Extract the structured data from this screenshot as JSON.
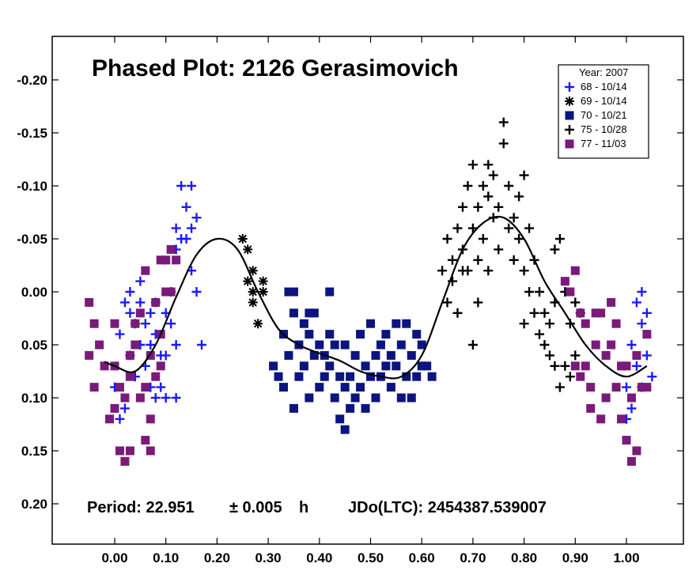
{
  "chart_data": {
    "type": "scatter",
    "title": "Phased Plot: 2126 Gerasimovich",
    "xlabel": "",
    "ylabel": "",
    "xlim": [
      -0.12,
      1.1
    ],
    "ylim": [
      0.24,
      -0.24
    ],
    "y_inverted": true,
    "grid": false,
    "x_ticks": [
      "0.00",
      "0.10",
      "0.20",
      "0.30",
      "0.40",
      "0.50",
      "0.60",
      "0.70",
      "0.80",
      "0.90",
      "1.00"
    ],
    "y_ticks": [
      "-0.20",
      "-0.15",
      "-0.10",
      "-0.05",
      "0.00",
      "0.05",
      "0.10",
      "0.15",
      "0.20"
    ],
    "legend": {
      "position": "top-right",
      "title": "Year: 2007",
      "entries": [
        {
          "label": "68 - 10/14",
          "marker": "plus",
          "color": "#1a1aff"
        },
        {
          "label": "69 - 10/14",
          "marker": "asterisk",
          "color": "#000000"
        },
        {
          "label": "70 - 10/21",
          "marker": "square",
          "color": "#0c1480"
        },
        {
          "label": "75 - 10/28",
          "marker": "plus",
          "color": "#000000"
        },
        {
          "label": "77 - 11/03",
          "marker": "square",
          "color": "#7a1a7a"
        }
      ]
    },
    "footer": {
      "period": "Period: 22.951",
      "uncertainty": "± 0.005",
      "unit": "h",
      "epoch": "JDo(LTC): 2454387.539007"
    },
    "fit_curve": {
      "name": "Fourier fit",
      "x": [
        -0.02,
        0.0,
        0.04,
        0.08,
        0.12,
        0.16,
        0.2,
        0.24,
        0.28,
        0.32,
        0.36,
        0.4,
        0.44,
        0.48,
        0.52,
        0.56,
        0.6,
        0.64,
        0.68,
        0.72,
        0.76,
        0.8,
        0.84,
        0.88,
        0.92,
        0.96,
        1.0,
        1.04
      ],
      "y": [
        0.066,
        0.07,
        0.075,
        0.05,
        0.005,
        -0.035,
        -0.05,
        -0.04,
        0.0,
        0.035,
        0.05,
        0.058,
        0.065,
        0.075,
        0.08,
        0.08,
        0.06,
        0.01,
        -0.04,
        -0.065,
        -0.07,
        -0.05,
        -0.01,
        0.02,
        0.05,
        0.07,
        0.08,
        0.07
      ]
    },
    "series": [
      {
        "name": "68 - 10/14",
        "marker": "plus",
        "color": "#1a1aff",
        "points": [
          [
            0.0,
            0.09
          ],
          [
            0.01,
            0.12
          ],
          [
            0.02,
            0.11
          ],
          [
            0.01,
            0.04
          ],
          [
            0.02,
            0.01
          ],
          [
            0.03,
            0.02
          ],
          [
            0.03,
            0.06
          ],
          [
            0.04,
            0.03
          ],
          [
            0.04,
            0.08
          ],
          [
            0.05,
            0.05
          ],
          [
            0.05,
            0.01
          ],
          [
            0.06,
            0.03
          ],
          [
            0.06,
            0.07
          ],
          [
            0.07,
            0.02
          ],
          [
            0.07,
            0.05
          ],
          [
            0.08,
            0.01
          ],
          [
            0.08,
            0.04
          ],
          [
            0.09,
            0.06
          ],
          [
            0.09,
            0.09
          ],
          [
            0.1,
            0.02
          ],
          [
            0.1,
            0.1
          ],
          [
            0.1,
            0.06
          ],
          [
            0.11,
            0.03
          ],
          [
            0.11,
            0.0
          ],
          [
            0.12,
            -0.04
          ],
          [
            0.12,
            -0.06
          ],
          [
            0.12,
            0.05
          ],
          [
            0.13,
            -0.05
          ],
          [
            0.13,
            -0.1
          ],
          [
            0.14,
            -0.08
          ],
          [
            0.14,
            -0.05
          ],
          [
            0.15,
            -0.06
          ],
          [
            0.15,
            -0.1
          ],
          [
            0.15,
            -0.02
          ],
          [
            0.16,
            0.0
          ],
          [
            0.17,
            0.05
          ],
          [
            0.16,
            -0.07
          ],
          [
            0.03,
            0.0
          ],
          [
            0.05,
            -0.01
          ],
          [
            0.07,
            0.09
          ],
          [
            0.08,
            0.1
          ],
          [
            0.12,
            0.1
          ],
          [
            1.0,
            0.09
          ],
          [
            1.0,
            0.12
          ],
          [
            1.01,
            0.05
          ],
          [
            1.01,
            0.11
          ],
          [
            1.02,
            0.01
          ],
          [
            1.02,
            0.07
          ],
          [
            1.03,
            0.0
          ],
          [
            1.03,
            0.03
          ],
          [
            1.04,
            0.02
          ],
          [
            1.04,
            0.06
          ],
          [
            1.05,
            0.08
          ],
          [
            1.03,
            0.09
          ]
        ]
      },
      {
        "name": "69 - 10/14",
        "marker": "asterisk",
        "color": "#000000",
        "points": [
          [
            0.25,
            -0.05
          ],
          [
            0.26,
            -0.04
          ],
          [
            0.26,
            -0.01
          ],
          [
            0.27,
            0.0
          ],
          [
            0.27,
            0.01
          ],
          [
            0.28,
            0.03
          ],
          [
            0.29,
            0.0
          ],
          [
            0.29,
            -0.01
          ],
          [
            0.27,
            -0.02
          ]
        ]
      },
      {
        "name": "70 - 10/21",
        "marker": "square",
        "color": "#0c1480",
        "points": [
          [
            0.31,
            0.07
          ],
          [
            0.32,
            0.08
          ],
          [
            0.33,
            0.09
          ],
          [
            0.33,
            0.04
          ],
          [
            0.34,
            0.0
          ],
          [
            0.34,
            0.06
          ],
          [
            0.35,
            0.11
          ],
          [
            0.35,
            0.02
          ],
          [
            0.36,
            0.05
          ],
          [
            0.36,
            0.08
          ],
          [
            0.37,
            0.03
          ],
          [
            0.37,
            0.07
          ],
          [
            0.38,
            0.1
          ],
          [
            0.38,
            0.04
          ],
          [
            0.39,
            0.06
          ],
          [
            0.39,
            0.02
          ],
          [
            0.4,
            0.05
          ],
          [
            0.4,
            0.09
          ],
          [
            0.41,
            0.06
          ],
          [
            0.41,
            0.08
          ],
          [
            0.42,
            0.04
          ],
          [
            0.42,
            0.07
          ],
          [
            0.43,
            0.1
          ],
          [
            0.43,
            0.05
          ],
          [
            0.44,
            0.08
          ],
          [
            0.44,
            0.12
          ],
          [
            0.45,
            0.09
          ],
          [
            0.45,
            0.13
          ],
          [
            0.46,
            0.11
          ],
          [
            0.46,
            0.08
          ],
          [
            0.47,
            0.1
          ],
          [
            0.47,
            0.06
          ],
          [
            0.48,
            0.09
          ],
          [
            0.48,
            0.04
          ],
          [
            0.49,
            0.07
          ],
          [
            0.49,
            0.11
          ],
          [
            0.5,
            0.03
          ],
          [
            0.5,
            0.08
          ],
          [
            0.51,
            0.06
          ],
          [
            0.51,
            0.1
          ],
          [
            0.52,
            0.05
          ],
          [
            0.52,
            0.08
          ],
          [
            0.53,
            0.07
          ],
          [
            0.53,
            0.04
          ],
          [
            0.54,
            0.06
          ],
          [
            0.54,
            0.09
          ],
          [
            0.55,
            0.03
          ],
          [
            0.55,
            0.07
          ],
          [
            0.56,
            0.05
          ],
          [
            0.56,
            0.1
          ],
          [
            0.57,
            0.08
          ],
          [
            0.57,
            0.03
          ],
          [
            0.58,
            0.06
          ],
          [
            0.58,
            0.1
          ],
          [
            0.59,
            0.04
          ],
          [
            0.59,
            0.08
          ],
          [
            0.6,
            0.05
          ],
          [
            0.6,
            0.07
          ],
          [
            0.61,
            0.07
          ],
          [
            0.62,
            0.08
          ],
          [
            0.35,
            0.0
          ],
          [
            0.38,
            0.02
          ],
          [
            0.42,
            0.0
          ],
          [
            0.45,
            0.05
          ]
        ]
      },
      {
        "name": "75 - 10/28",
        "marker": "plus",
        "color": "#000000",
        "points": [
          [
            0.64,
            -0.02
          ],
          [
            0.65,
            -0.05
          ],
          [
            0.65,
            0.01
          ],
          [
            0.66,
            -0.03
          ],
          [
            0.66,
            -0.01
          ],
          [
            0.67,
            -0.06
          ],
          [
            0.67,
            0.02
          ],
          [
            0.68,
            -0.04
          ],
          [
            0.68,
            -0.08
          ],
          [
            0.69,
            -0.02
          ],
          [
            0.69,
            -0.1
          ],
          [
            0.7,
            -0.06
          ],
          [
            0.7,
            -0.12
          ],
          [
            0.71,
            -0.03
          ],
          [
            0.71,
            -0.08
          ],
          [
            0.72,
            -0.1
          ],
          [
            0.72,
            -0.05
          ],
          [
            0.73,
            -0.09
          ],
          [
            0.73,
            -0.02
          ],
          [
            0.74,
            -0.07
          ],
          [
            0.74,
            -0.11
          ],
          [
            0.75,
            -0.04
          ],
          [
            0.75,
            -0.08
          ],
          [
            0.76,
            -0.16
          ],
          [
            0.76,
            -0.14
          ],
          [
            0.77,
            -0.06
          ],
          [
            0.77,
            -0.1
          ],
          [
            0.78,
            -0.03
          ],
          [
            0.78,
            -0.07
          ],
          [
            0.79,
            -0.09
          ],
          [
            0.79,
            -0.05
          ],
          [
            0.8,
            -0.11
          ],
          [
            0.8,
            -0.02
          ],
          [
            0.81,
            -0.06
          ],
          [
            0.81,
            0.0
          ],
          [
            0.82,
            -0.03
          ],
          [
            0.82,
            0.02
          ],
          [
            0.83,
            0.0
          ],
          [
            0.83,
            0.04
          ],
          [
            0.84,
            0.02
          ],
          [
            0.84,
            0.05
          ],
          [
            0.85,
            0.06
          ],
          [
            0.85,
            0.03
          ],
          [
            0.86,
            -0.04
          ],
          [
            0.86,
            0.07
          ],
          [
            0.87,
            -0.05
          ],
          [
            0.87,
            0.09
          ],
          [
            0.88,
            0.0
          ],
          [
            0.88,
            0.07
          ],
          [
            0.89,
            0.03
          ],
          [
            0.89,
            0.08
          ],
          [
            0.9,
            0.01
          ],
          [
            0.9,
            0.06
          ],
          [
            0.91,
            0.02
          ],
          [
            0.86,
            0.01
          ],
          [
            0.7,
            0.05
          ],
          [
            0.71,
            0.01
          ],
          [
            0.8,
            0.03
          ],
          [
            0.73,
            -0.12
          ],
          [
            0.68,
            -0.02
          ]
        ]
      },
      {
        "name": "77 - 11/03",
        "marker": "square",
        "color": "#7a1a7a",
        "points": [
          [
            -0.05,
            0.01
          ],
          [
            -0.05,
            0.06
          ],
          [
            -0.04,
            0.09
          ],
          [
            -0.04,
            0.03
          ],
          [
            -0.03,
            0.05
          ],
          [
            -0.02,
            0.07
          ],
          [
            -0.01,
            0.12
          ],
          [
            0.0,
            0.11
          ],
          [
            0.0,
            0.07
          ],
          [
            0.0,
            0.03
          ],
          [
            0.01,
            0.09
          ],
          [
            0.01,
            0.15
          ],
          [
            0.02,
            0.16
          ],
          [
            0.02,
            0.1
          ],
          [
            0.03,
            0.08
          ],
          [
            0.03,
            0.06
          ],
          [
            0.03,
            0.15
          ],
          [
            0.04,
            0.03
          ],
          [
            0.04,
            0.05
          ],
          [
            0.05,
            0.1
          ],
          [
            0.05,
            0.02
          ],
          [
            0.06,
            0.14
          ],
          [
            0.06,
            0.09
          ],
          [
            0.07,
            0.12
          ],
          [
            0.07,
            0.06
          ],
          [
            0.08,
            0.01
          ],
          [
            0.08,
            0.08
          ],
          [
            0.09,
            0.07
          ],
          [
            0.09,
            0.04
          ],
          [
            0.1,
            0.0
          ],
          [
            0.1,
            -0.03
          ],
          [
            0.11,
            -0.04
          ],
          [
            0.11,
            0.0
          ],
          [
            0.06,
            -0.02
          ],
          [
            0.09,
            -0.03
          ],
          [
            0.12,
            -0.03
          ],
          [
            0.07,
            0.15
          ],
          [
            0.88,
            -0.01
          ],
          [
            0.89,
            0.0
          ],
          [
            0.9,
            -0.02
          ],
          [
            0.9,
            0.07
          ],
          [
            0.91,
            0.08
          ],
          [
            0.91,
            0.02
          ],
          [
            0.92,
            0.07
          ],
          [
            0.92,
            0.03
          ],
          [
            0.93,
            0.09
          ],
          [
            0.93,
            0.11
          ],
          [
            0.94,
            0.02
          ],
          [
            0.94,
            0.05
          ],
          [
            0.95,
            0.12
          ],
          [
            0.95,
            0.02
          ],
          [
            0.96,
            0.06
          ],
          [
            0.97,
            0.01
          ],
          [
            0.97,
            0.05
          ],
          [
            0.98,
            0.09
          ],
          [
            0.98,
            0.03
          ],
          [
            0.99,
            0.12
          ],
          [
            0.99,
            0.07
          ],
          [
            1.0,
            0.14
          ],
          [
            1.0,
            0.07
          ],
          [
            1.01,
            0.16
          ],
          [
            1.01,
            0.1
          ],
          [
            1.02,
            0.06
          ],
          [
            1.02,
            0.15
          ],
          [
            1.03,
            0.09
          ],
          [
            1.04,
            0.09
          ],
          [
            1.04,
            0.04
          ],
          [
            0.96,
            0.1
          ]
        ]
      }
    ]
  }
}
